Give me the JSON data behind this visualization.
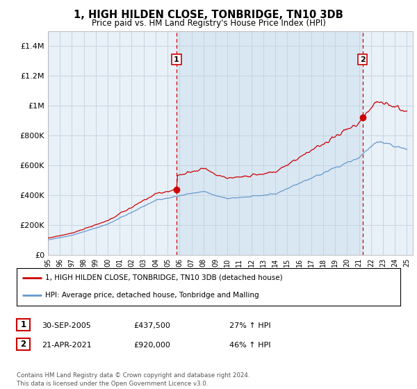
{
  "title": "1, HIGH HILDEN CLOSE, TONBRIDGE, TN10 3DB",
  "subtitle": "Price paid vs. HM Land Registry's House Price Index (HPI)",
  "ylim": [
    0,
    1500000
  ],
  "yticks": [
    0,
    200000,
    400000,
    600000,
    800000,
    1000000,
    1200000,
    1400000
  ],
  "ytick_labels": [
    "£0",
    "£200K",
    "£400K",
    "£600K",
    "£800K",
    "£1M",
    "£1.2M",
    "£1.4M"
  ],
  "x_start_year": 1995,
  "x_end_year": 2025,
  "line1_color": "#cc0000",
  "line2_color": "#6699cc",
  "shade_color": "#ddeeff",
  "sale1_date": 2005.75,
  "sale1_price": 437500,
  "sale2_date": 2021.3,
  "sale2_price": 920000,
  "vline_color": "#cc0000",
  "legend1_label": "1, HIGH HILDEN CLOSE, TONBRIDGE, TN10 3DB (detached house)",
  "legend2_label": "HPI: Average price, detached house, Tonbridge and Malling",
  "table_row1": [
    "1",
    "30-SEP-2005",
    "£437,500",
    "27% ↑ HPI"
  ],
  "table_row2": [
    "2",
    "21-APR-2021",
    "£920,000",
    "46% ↑ HPI"
  ],
  "footer": "Contains HM Land Registry data © Crown copyright and database right 2024.\nThis data is licensed under the Open Government Licence v3.0.",
  "background_color": "#e8f0f8",
  "grid_color": "#c8d4e0"
}
